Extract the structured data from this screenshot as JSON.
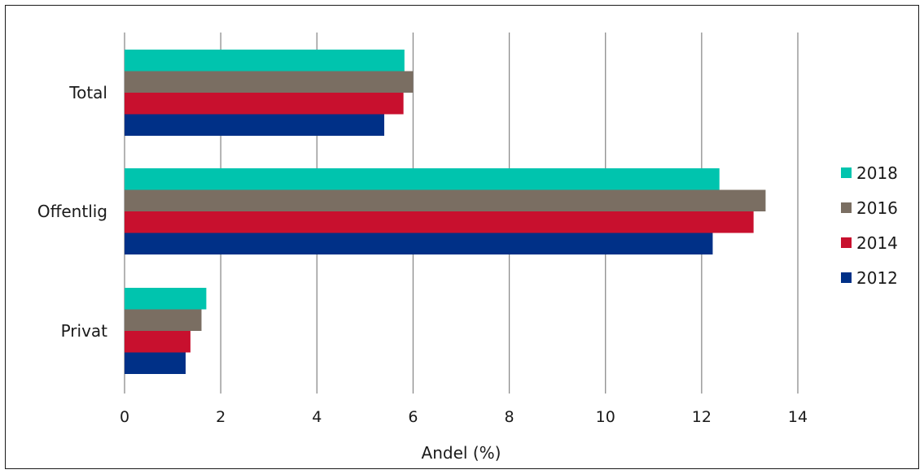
{
  "chart_data": {
    "type": "bar",
    "orientation": "horizontal",
    "categories": [
      "Total",
      "Offentlig",
      "Privat"
    ],
    "series": [
      {
        "name": "2018",
        "color": "#00c4ae",
        "values": [
          5.82,
          12.37,
          1.7
        ]
      },
      {
        "name": "2016",
        "color": "#7a6e62",
        "values": [
          6.0,
          13.33,
          1.6
        ]
      },
      {
        "name": "2014",
        "color": "#c8102e",
        "values": [
          5.8,
          13.08,
          1.37
        ]
      },
      {
        "name": "2012",
        "color": "#003087",
        "values": [
          5.4,
          12.23,
          1.27
        ]
      }
    ],
    "xlim": [
      0,
      14
    ],
    "xticks": [
      0,
      2,
      4,
      6,
      8,
      10,
      12,
      14
    ],
    "xlabel": "Andel (%)",
    "grid": "vertical",
    "legend_position": "right"
  }
}
